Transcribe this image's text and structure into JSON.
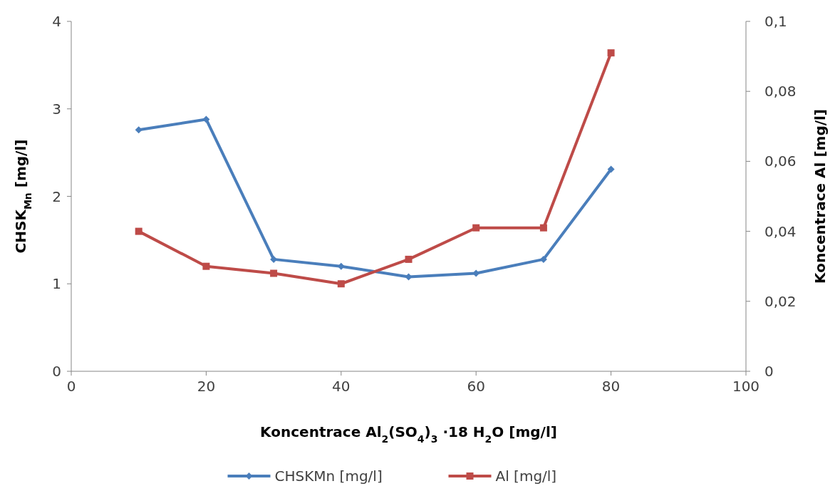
{
  "chart_data": {
    "type": "line",
    "xlabel": "Koncentrace Al$_{2}$(SO$_{4}$)$_{3}$ ·18 H$_{2}$O [mg/l]",
    "ylabel": "CHSK$_{Mn}$ [mg/l]",
    "y2label": "Koncentrace Al [mg/l]",
    "x": [
      10,
      20,
      30,
      40,
      50,
      60,
      70,
      80
    ],
    "xlim": [
      0,
      100
    ],
    "xticks": [
      0,
      20,
      40,
      60,
      80,
      100
    ],
    "ylim": [
      0,
      4
    ],
    "yticks": [
      0,
      1,
      2,
      3,
      4
    ],
    "y2lim": [
      0,
      0.1
    ],
    "y2ticks": [
      {
        "value": 0,
        "label": "0"
      },
      {
        "value": 0.02,
        "label": "0,02"
      },
      {
        "value": 0.04,
        "label": "0,04"
      },
      {
        "value": 0.06,
        "label": "0,06"
      },
      {
        "value": 0.08,
        "label": "0,08"
      },
      {
        "value": 0.1,
        "label": "0,1"
      }
    ],
    "legend": "bottom",
    "grid": false,
    "series": [
      {
        "name": "CHSKMn [mg/l]",
        "color": "#4a7ebb",
        "marker": "diamond",
        "values": [
          2.76,
          2.88,
          1.28,
          1.2,
          1.08,
          1.12,
          1.28,
          2.31
        ]
      },
      {
        "name": "Al [mg/l]",
        "color": "#be4b48",
        "marker": "square",
        "axis": "y2",
        "values": [
          0.04,
          0.03,
          0.028,
          0.025,
          0.032,
          0.041,
          0.041,
          0.091
        ]
      }
    ]
  }
}
